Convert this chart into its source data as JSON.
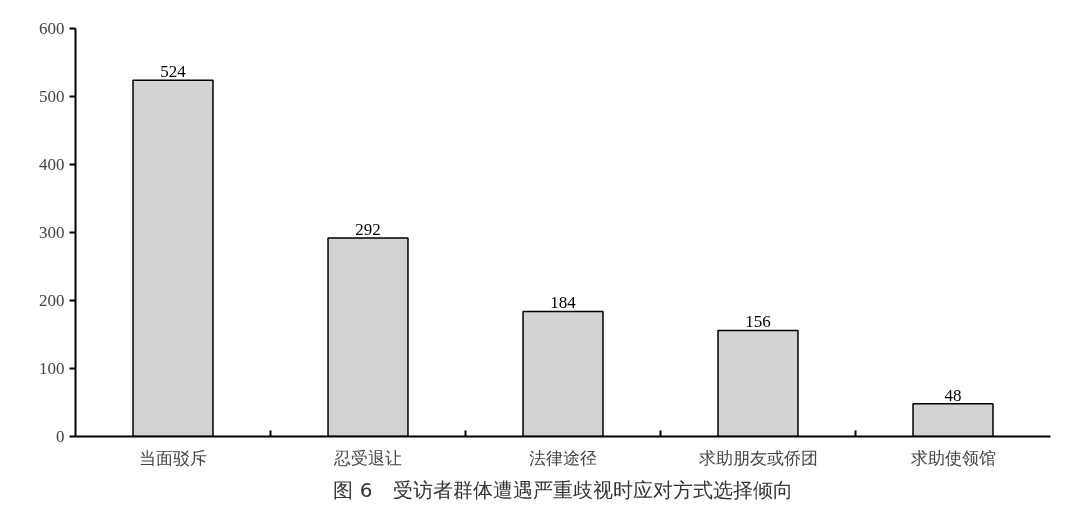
{
  "chart_data": {
    "type": "bar",
    "title": "图 6　受访者群体遭遇严重歧视时应对方式选择倾向",
    "categories": [
      "当面驳斥",
      "忍受退让",
      "法律途径",
      "求助朋友或侨团",
      "求助使领馆"
    ],
    "values": [
      524,
      292,
      184,
      156,
      48
    ],
    "color": "#d3d3d3",
    "ylim": [
      0,
      600
    ],
    "yticks": [
      0,
      100,
      200,
      300,
      400,
      500,
      600
    ],
    "data_labels": true,
    "grid": false
  }
}
